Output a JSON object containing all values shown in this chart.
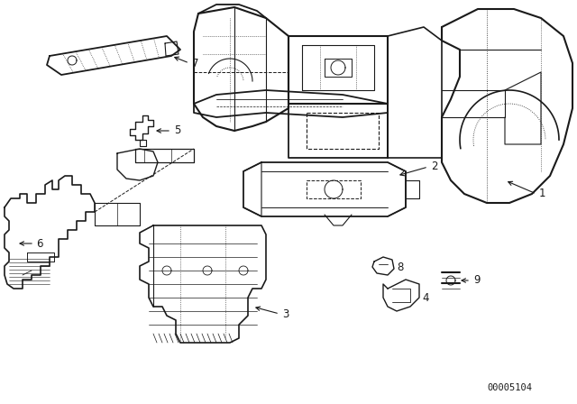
{
  "background_color": "#ffffff",
  "diagram_id": "00005104",
  "line_color": "#1a1a1a",
  "fig_width": 6.4,
  "fig_height": 4.48,
  "dpi": 100,
  "border_color": "#cccccc"
}
